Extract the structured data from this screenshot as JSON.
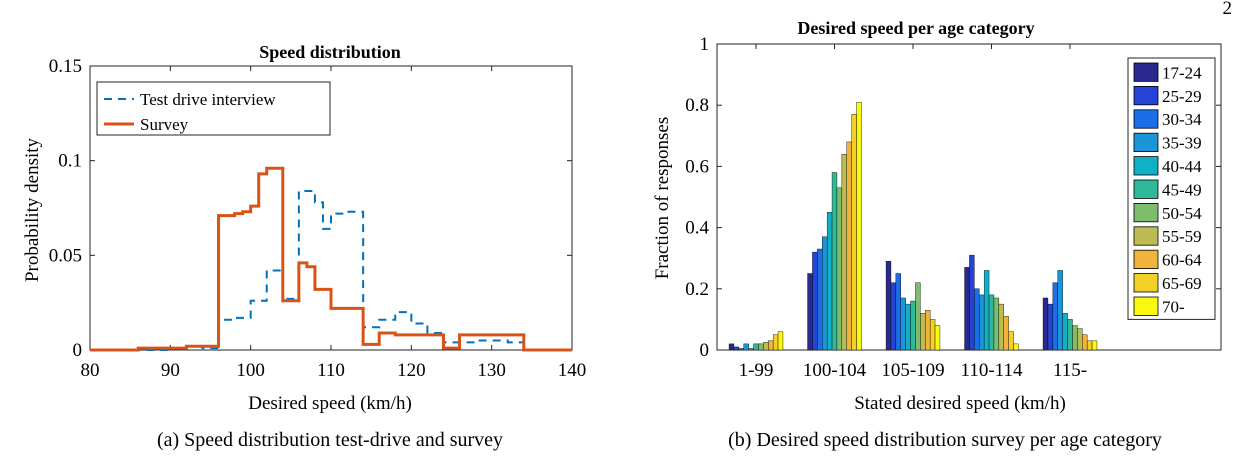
{
  "page_number": "2",
  "chart_data": [
    {
      "type": "line",
      "title": "Speed distribution",
      "xlabel": "Desired speed (km/h)",
      "ylabel": "Probability density",
      "caption": "(a)  Speed distribution test-drive and survey",
      "xlim": [
        80,
        140
      ],
      "ylim": [
        0,
        0.15
      ],
      "xticks": [
        "80",
        "90",
        "100",
        "110",
        "120",
        "130",
        "140"
      ],
      "yticks": [
        "0",
        "0.05",
        "0.1",
        "0.15"
      ],
      "legend_position": "top-left",
      "step": true,
      "series": [
        {
          "name": "Test drive interview",
          "color": "#0072BD",
          "style": "dashed",
          "x": [
            80,
            88,
            90,
            92,
            94,
            96,
            98,
            100,
            102,
            104,
            106,
            108,
            109,
            110,
            112,
            114,
            116,
            118,
            120,
            122,
            124,
            126,
            128,
            130,
            132,
            134,
            136,
            140
          ],
          "y": [
            0,
            0,
            0.001,
            0.002,
            0.001,
            0.016,
            0.017,
            0.026,
            0.042,
            0.027,
            0.084,
            0.078,
            0.064,
            0.072,
            0.073,
            0.012,
            0.016,
            0.02,
            0.014,
            0.009,
            0.004,
            0.004,
            0.005,
            0.005,
            0.004,
            0,
            0,
            0
          ]
        },
        {
          "name": "Survey",
          "color": "#D95319",
          "style": "solid",
          "x": [
            80,
            86,
            88,
            92,
            94,
            96,
            98,
            99,
            100,
            101,
            102,
            104,
            106,
            107,
            108,
            110,
            112,
            114,
            116,
            118,
            120,
            122,
            124,
            126,
            128,
            134,
            136,
            140
          ],
          "y": [
            0,
            0.001,
            0.001,
            0.002,
            0.002,
            0.071,
            0.072,
            0.073,
            0.076,
            0.093,
            0.096,
            0.026,
            0.046,
            0.044,
            0.032,
            0.022,
            0.022,
            0.003,
            0.009,
            0.008,
            0.008,
            0.008,
            0.001,
            0.008,
            0.008,
            0,
            0,
            0
          ]
        }
      ]
    },
    {
      "type": "bar",
      "title": "Desired speed per age category",
      "xlabel": "Stated desired speed (km/h)",
      "ylabel": "Fraction of responses",
      "caption": "(b)  Desired speed distribution survey per age category",
      "ylim": [
        0,
        1
      ],
      "yticks": [
        "0",
        "0.2",
        "0.4",
        "0.6",
        "0.8",
        "1"
      ],
      "categories": [
        "1-99",
        "100-104",
        "105-109",
        "110-114",
        "115-"
      ],
      "legend_position": "top-right",
      "series": [
        {
          "name": "17-24",
          "color": "#2a2a8e",
          "values": [
            0.02,
            0.25,
            0.29,
            0.27,
            0.17
          ]
        },
        {
          "name": "25-29",
          "color": "#2543d6",
          "values": [
            0.01,
            0.32,
            0.22,
            0.31,
            0.15
          ]
        },
        {
          "name": "30-34",
          "color": "#1c6ee8",
          "values": [
            0.005,
            0.33,
            0.25,
            0.2,
            0.22
          ]
        },
        {
          "name": "35-39",
          "color": "#1a96d8",
          "values": [
            0.02,
            0.37,
            0.17,
            0.18,
            0.26
          ]
        },
        {
          "name": "40-44",
          "color": "#10b0c7",
          "values": [
            0.005,
            0.45,
            0.15,
            0.26,
            0.12
          ]
        },
        {
          "name": "45-49",
          "color": "#2fb89a",
          "values": [
            0.02,
            0.58,
            0.16,
            0.18,
            0.1
          ]
        },
        {
          "name": "50-54",
          "color": "#7ebd6e",
          "values": [
            0.02,
            0.53,
            0.22,
            0.17,
            0.08
          ]
        },
        {
          "name": "55-59",
          "color": "#bcbc52",
          "values": [
            0.025,
            0.64,
            0.12,
            0.15,
            0.07
          ]
        },
        {
          "name": "60-64",
          "color": "#f0b43c",
          "values": [
            0.03,
            0.68,
            0.13,
            0.11,
            0.05
          ]
        },
        {
          "name": "65-69",
          "color": "#f3d028",
          "values": [
            0.05,
            0.77,
            0.1,
            0.06,
            0.03
          ]
        },
        {
          "name": "70-",
          "color": "#f8f810",
          "values": [
            0.06,
            0.81,
            0.08,
            0.02,
            0.03
          ]
        }
      ]
    }
  ]
}
